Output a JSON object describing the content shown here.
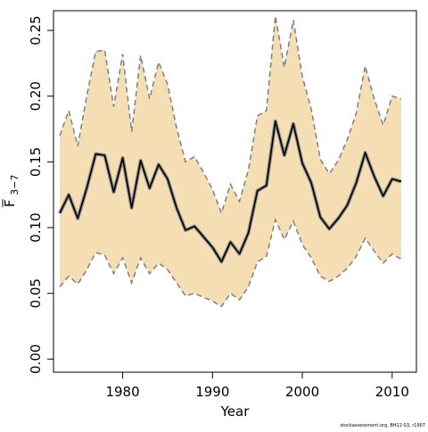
{
  "credit": "stockassessment.org, BH12-S3, r1907",
  "chart_data": {
    "type": "line",
    "title": "",
    "xlabel": "Year",
    "ylabel_main": "F",
    "ylabel_sub": "3−7",
    "xlim": [
      1972.3,
      2012.7
    ],
    "ylim": [
      -0.01,
      0.265
    ],
    "x_ticks": [
      1980,
      1990,
      2000,
      2010
    ],
    "x_tick_labels": [
      "1980",
      "1990",
      "2000",
      "2010"
    ],
    "y_ticks": [
      0.0,
      0.05,
      0.1,
      0.15,
      0.2,
      0.25
    ],
    "y_tick_labels": [
      "0.00",
      "0.05",
      "0.10",
      "0.15",
      "0.20",
      "0.25"
    ],
    "grid": false,
    "colors": {
      "band_fill": "#f5deb3",
      "band_edge": "#7f7f7f",
      "line": "#000000",
      "line_halo": "#8a8a8a"
    },
    "series": [
      {
        "role": "estimate",
        "x": [
          1973,
          1974,
          1975,
          1976,
          1977,
          1978,
          1979,
          1980,
          1981,
          1982,
          1983,
          1984,
          1985,
          1986,
          1987,
          1988,
          1989,
          1990,
          1991,
          1992,
          1993,
          1994,
          1995,
          1996,
          1997,
          1998,
          1999,
          2000,
          2001,
          2002,
          2003,
          2004,
          2005,
          2006,
          2007,
          2008,
          2009,
          2010,
          2011
        ],
        "values": [
          0.111,
          0.125,
          0.107,
          0.13,
          0.156,
          0.155,
          0.127,
          0.153,
          0.115,
          0.151,
          0.13,
          0.148,
          0.137,
          0.115,
          0.098,
          0.101,
          0.093,
          0.085,
          0.074,
          0.089,
          0.08,
          0.096,
          0.128,
          0.132,
          0.181,
          0.155,
          0.179,
          0.149,
          0.134,
          0.108,
          0.099,
          0.107,
          0.117,
          0.134,
          0.157,
          0.139,
          0.124,
          0.137,
          0.135
        ]
      },
      {
        "role": "upper-bound",
        "x": [
          1973,
          1974,
          1975,
          1976,
          1977,
          1978,
          1979,
          1980,
          1981,
          1982,
          1983,
          1984,
          1985,
          1986,
          1987,
          1988,
          1989,
          1990,
          1991,
          1992,
          1993,
          1994,
          1995,
          1996,
          1997,
          1998,
          1999,
          2000,
          2001,
          2002,
          2003,
          2004,
          2005,
          2006,
          2007,
          2008,
          2009,
          2010,
          2011
        ],
        "values": [
          0.17,
          0.189,
          0.162,
          0.2,
          0.234,
          0.235,
          0.192,
          0.232,
          0.173,
          0.231,
          0.198,
          0.226,
          0.209,
          0.176,
          0.15,
          0.154,
          0.142,
          0.129,
          0.111,
          0.133,
          0.12,
          0.144,
          0.185,
          0.189,
          0.261,
          0.222,
          0.258,
          0.215,
          0.19,
          0.152,
          0.141,
          0.151,
          0.167,
          0.187,
          0.223,
          0.198,
          0.178,
          0.2,
          0.198
        ]
      },
      {
        "role": "lower-bound",
        "x": [
          1973,
          1974,
          1975,
          1976,
          1977,
          1978,
          1979,
          1980,
          1981,
          1982,
          1983,
          1984,
          1985,
          1986,
          1987,
          1988,
          1989,
          1990,
          1991,
          1992,
          1993,
          1994,
          1995,
          1996,
          1997,
          1998,
          1999,
          2000,
          2001,
          2002,
          2003,
          2004,
          2005,
          2006,
          2007,
          2008,
          2009,
          2010,
          2011
        ],
        "values": [
          0.055,
          0.063,
          0.057,
          0.068,
          0.081,
          0.079,
          0.065,
          0.077,
          0.058,
          0.077,
          0.065,
          0.073,
          0.068,
          0.058,
          0.048,
          0.05,
          0.047,
          0.044,
          0.04,
          0.05,
          0.045,
          0.055,
          0.074,
          0.078,
          0.106,
          0.091,
          0.105,
          0.087,
          0.077,
          0.063,
          0.059,
          0.063,
          0.069,
          0.078,
          0.092,
          0.082,
          0.073,
          0.08,
          0.076
        ]
      }
    ]
  }
}
